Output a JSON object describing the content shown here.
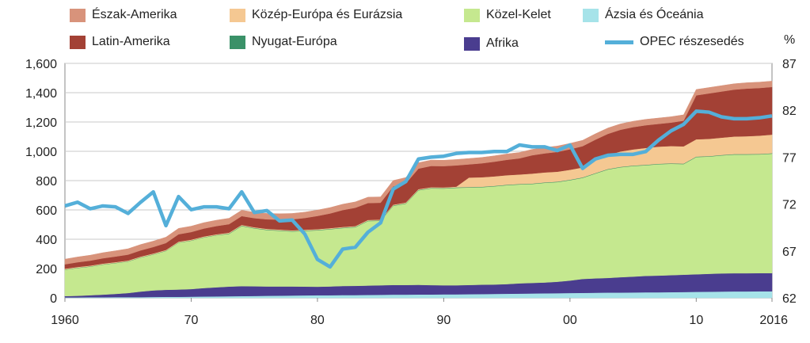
{
  "chart_data": {
    "type": "area",
    "stacked": true,
    "ylim": [
      0,
      1600
    ],
    "y_right_lim": [
      62,
      87
    ],
    "y_right_unit": "%",
    "x_tick_labels": [
      "1960",
      "70",
      "80",
      "90",
      "00",
      "10",
      "2016"
    ],
    "y_tick_labels": [
      "0",
      "200",
      "400",
      "600",
      "800",
      "1,000",
      "1,200",
      "1,400",
      "1,600"
    ],
    "y_right_tick_labels": [
      "62",
      "67",
      "72",
      "77",
      "82",
      "87"
    ],
    "grid": "horizontal",
    "legend_position": "top",
    "x": [
      1960,
      1961,
      1962,
      1963,
      1964,
      1965,
      1966,
      1967,
      1968,
      1969,
      1970,
      1971,
      1972,
      1973,
      1974,
      1975,
      1976,
      1977,
      1978,
      1979,
      1980,
      1981,
      1982,
      1983,
      1984,
      1985,
      1986,
      1987,
      1988,
      1989,
      1990,
      1991,
      1992,
      1993,
      1994,
      1995,
      1996,
      1997,
      1998,
      1999,
      2000,
      2001,
      2002,
      2003,
      2004,
      2005,
      2006,
      2007,
      2008,
      2009,
      2010,
      2011,
      2012,
      2013,
      2014,
      2015,
      2016
    ],
    "series": [
      {
        "name": "Ázsia és Óceánia",
        "color": "#a6e3e9",
        "values": [
          3,
          3,
          4,
          4,
          5,
          5,
          5,
          6,
          7,
          7,
          8,
          9,
          10,
          11,
          12,
          13,
          14,
          15,
          16,
          17,
          18,
          18,
          19,
          19,
          20,
          21,
          22,
          22,
          23,
          23,
          24,
          24,
          25,
          26,
          27,
          28,
          29,
          30,
          31,
          32,
          33,
          34,
          35,
          36,
          36,
          37,
          38,
          38,
          39,
          40,
          41,
          42,
          43,
          44,
          44,
          45,
          45
        ]
      },
      {
        "name": "Afrika",
        "color": "#4a3d8f",
        "values": [
          9,
          11,
          14,
          18,
          22,
          28,
          38,
          45,
          48,
          50,
          52,
          58,
          62,
          66,
          68,
          66,
          64,
          63,
          62,
          60,
          58,
          60,
          62,
          63,
          64,
          65,
          66,
          66,
          66,
          64,
          62,
          62,
          63,
          64,
          64,
          66,
          70,
          72,
          74,
          78,
          85,
          95,
          98,
          100,
          105,
          108,
          112,
          114,
          116,
          118,
          120,
          122,
          124,
          124,
          124,
          124,
          124
        ]
      },
      {
        "name": "Közel-Kelet",
        "color": "#c5e88f",
        "values": [
          180,
          190,
          195,
          205,
          210,
          215,
          232,
          245,
          265,
          320,
          330,
          345,
          355,
          360,
          410,
          395,
          385,
          380,
          375,
          380,
          385,
          390,
          395,
          400,
          440,
          440,
          540,
          555,
          645,
          660,
          660,
          665,
          665,
          665,
          670,
          675,
          675,
          675,
          680,
          680,
          685,
          690,
          715,
          740,
          750,
          755,
          755,
          760,
          760,
          755,
          800,
          800,
          805,
          810,
          810,
          810,
          815
        ]
      },
      {
        "name": "Nyugat-Európa",
        "color": "#3a9168",
        "values": [
          2,
          2,
          2,
          2,
          2,
          2,
          2,
          2,
          2,
          2,
          2,
          2,
          2,
          3,
          3,
          3,
          3,
          3,
          3,
          3,
          3,
          3,
          3,
          3,
          3,
          3,
          3,
          3,
          3,
          3,
          3,
          3,
          3,
          3,
          3,
          3,
          3,
          3,
          3,
          3,
          3,
          3,
          3,
          3,
          3,
          3,
          3,
          3,
          3,
          3,
          3,
          3,
          3,
          3,
          3,
          3,
          3
        ]
      },
      {
        "name": "Közép-Európa és Eurázsia",
        "color": "#f5c892",
        "values": [
          5,
          5,
          5,
          5,
          5,
          5,
          5,
          5,
          5,
          5,
          5,
          5,
          5,
          5,
          5,
          5,
          5,
          5,
          5,
          5,
          5,
          5,
          5,
          5,
          5,
          5,
          5,
          5,
          5,
          5,
          5,
          5,
          65,
          65,
          65,
          65,
          65,
          68,
          68,
          68,
          68,
          68,
          88,
          95,
          105,
          110,
          115,
          117,
          118,
          118,
          118,
          118,
          118,
          120,
          122,
          125,
          127
        ]
      },
      {
        "name": "Latin-Amerika",
        "color": "#a34135",
        "values": [
          30,
          32,
          34,
          36,
          38,
          40,
          42,
          44,
          47,
          50,
          52,
          54,
          56,
          58,
          60,
          62,
          65,
          68,
          75,
          80,
          90,
          100,
          115,
          125,
          115,
          115,
          125,
          130,
          140,
          145,
          145,
          145,
          90,
          95,
          100,
          105,
          110,
          125,
          130,
          135,
          140,
          145,
          140,
          145,
          148,
          152,
          155,
          155,
          160,
          175,
          300,
          310,
          315,
          320,
          325,
          325,
          325
        ]
      },
      {
        "name": "Észak-Amerika",
        "color": "#d8937b",
        "values": [
          35,
          36,
          37,
          38,
          39,
          40,
          40,
          40,
          40,
          40,
          40,
          40,
          40,
          40,
          40,
          40,
          40,
          40,
          40,
          40,
          40,
          40,
          40,
          40,
          40,
          40,
          40,
          40,
          40,
          40,
          40,
          40,
          40,
          40,
          40,
          40,
          40,
          40,
          40,
          40,
          40,
          40,
          40,
          40,
          40,
          40,
          40,
          40,
          40,
          40,
          40,
          40,
          40,
          40,
          40,
          40,
          40
        ]
      }
    ],
    "line_series": {
      "name": "OPEC részesedés",
      "color": "#54afd9",
      "axis": "right",
      "values": [
        71.8,
        72.2,
        71.5,
        71.8,
        71.7,
        71.0,
        72.2,
        73.3,
        69.7,
        72.8,
        71.4,
        71.7,
        71.7,
        71.5,
        73.3,
        71.1,
        71.3,
        70.2,
        70.3,
        68.8,
        66.1,
        65.3,
        67.2,
        67.4,
        69.0,
        70.0,
        73.6,
        74.4,
        76.8,
        77.0,
        77.1,
        77.4,
        77.5,
        77.5,
        77.6,
        77.6,
        78.3,
        78.1,
        78.1,
        77.7,
        78.3,
        75.8,
        76.8,
        77.2,
        77.3,
        77.3,
        77.6,
        78.8,
        79.8,
        80.5,
        81.9,
        81.8,
        81.3,
        81.1,
        81.1,
        81.2,
        81.4
      ]
    }
  }
}
